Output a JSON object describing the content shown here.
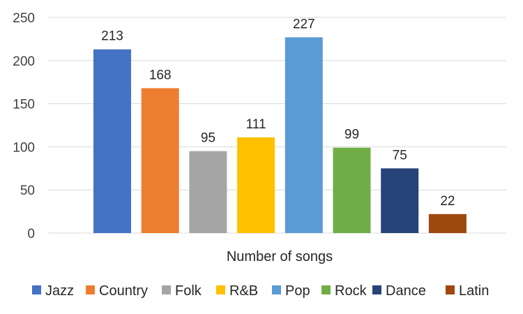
{
  "chart_data": {
    "type": "bar",
    "title": "",
    "xlabel": "Number of songs",
    "ylabel": "",
    "ylim": [
      0,
      250
    ],
    "yticks": [
      0,
      50,
      100,
      150,
      200,
      250
    ],
    "grid": true,
    "legend_position": "bottom",
    "series": [
      {
        "name": "Jazz",
        "value": 213,
        "color": "#4472C4"
      },
      {
        "name": "Country",
        "value": 168,
        "color": "#ED7D31"
      },
      {
        "name": "Folk",
        "value": 95,
        "color": "#A5A5A5"
      },
      {
        "name": "R&B",
        "value": 111,
        "color": "#FFC000"
      },
      {
        "name": "Pop",
        "value": 227,
        "color": "#5B9BD5"
      },
      {
        "name": "Rock",
        "value": 99,
        "color": "#70AD47"
      },
      {
        "name": "Dance",
        "value": 75,
        "color": "#264478"
      },
      {
        "name": "Latin",
        "value": 22,
        "color": "#9E480E"
      }
    ]
  }
}
